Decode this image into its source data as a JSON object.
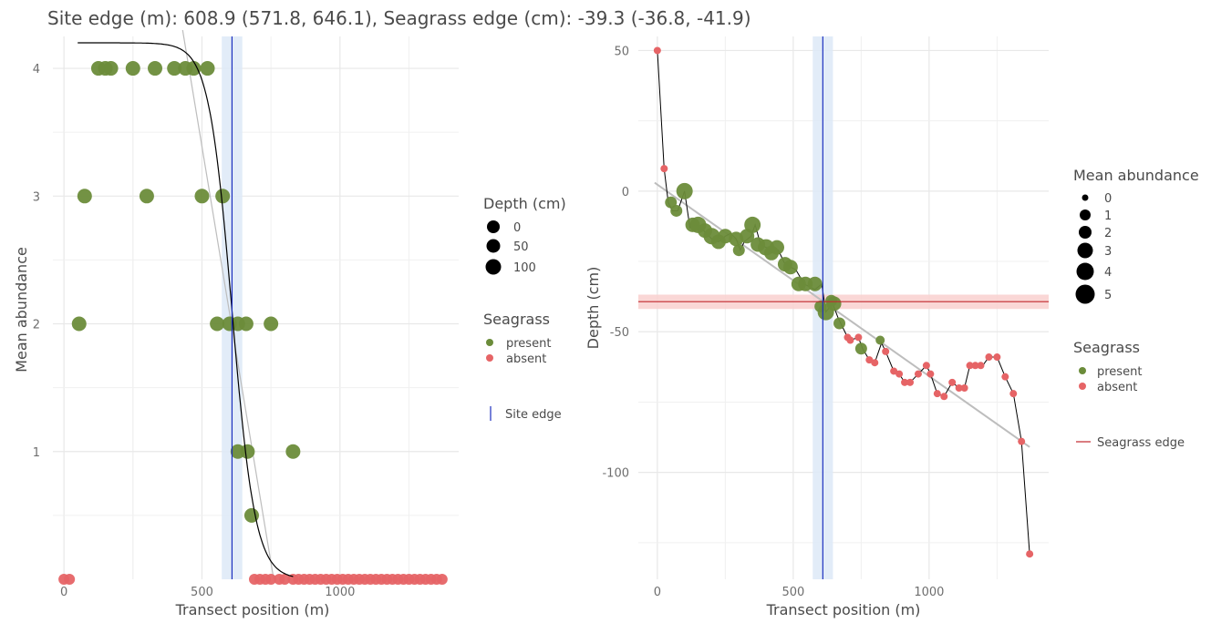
{
  "title": "Site edge (m): 608.9 (571.8, 646.1), Seagrass edge (cm): -39.3 (-36.8, -41.9)",
  "colors": {
    "present": "#6b8c3a",
    "absent": "#e66466",
    "site_edge": "#1c2fbf",
    "site_edge_ci": "#dde9f7",
    "seagrass_edge": "#c1272d",
    "seagrass_edge_ci": "#f9d0cf",
    "grid": "#e8e8e8",
    "trend": "#bdbdbd",
    "fit": "#000000"
  },
  "chart_data": [
    {
      "type": "scatter",
      "xlabel": "Transect position (m)",
      "ylabel": "Mean abundance",
      "xlim": [
        -40,
        1430
      ],
      "ylim": [
        0,
        4.25
      ],
      "xticks": [
        0,
        500,
        1000
      ],
      "xtick_labels": [
        "0",
        "500",
        "1000"
      ],
      "yticks": [
        1,
        2,
        3,
        4
      ],
      "ytick_labels": [
        "1",
        "2",
        "3",
        "4"
      ],
      "grid": true,
      "site_edge": 608.9,
      "site_edge_ci": [
        571.8,
        646.1
      ],
      "logistic_fit": {
        "x_range": [
          50,
          830
        ],
        "upper": 4.2,
        "midpoint": 608.9,
        "scale": 42
      },
      "tangent_line": [
        [
          430,
          4.3
        ],
        [
          760,
          0
        ]
      ],
      "size_legend": {
        "title": "Depth (cm)",
        "labels": [
          "0",
          "50",
          "100"
        ]
      },
      "color_legend": {
        "title": "Seagrass",
        "labels": [
          "present",
          "absent"
        ]
      },
      "line_legend": {
        "label": "Site edge"
      },
      "series": [
        {
          "name": "present",
          "points": [
            {
              "x": 125,
              "y": 4
            },
            {
              "x": 150,
              "y": 4
            },
            {
              "x": 170,
              "y": 4
            },
            {
              "x": 250,
              "y": 4
            },
            {
              "x": 330,
              "y": 4
            },
            {
              "x": 400,
              "y": 4
            },
            {
              "x": 440,
              "y": 4
            },
            {
              "x": 470,
              "y": 4
            },
            {
              "x": 520,
              "y": 4
            },
            {
              "x": 75,
              "y": 3
            },
            {
              "x": 300,
              "y": 3
            },
            {
              "x": 500,
              "y": 3
            },
            {
              "x": 575,
              "y": 3
            },
            {
              "x": 55,
              "y": 2
            },
            {
              "x": 555,
              "y": 2
            },
            {
              "x": 600,
              "y": 2
            },
            {
              "x": 630,
              "y": 2
            },
            {
              "x": 660,
              "y": 2
            },
            {
              "x": 750,
              "y": 2
            },
            {
              "x": 630,
              "y": 1
            },
            {
              "x": 665,
              "y": 1
            },
            {
              "x": 830,
              "y": 1
            },
            {
              "x": 680,
              "y": 0.5
            }
          ]
        },
        {
          "name": "absent",
          "points": [
            {
              "x": 0,
              "y": 0
            },
            {
              "x": 20,
              "y": 0
            },
            {
              "x": 690,
              "y": 0
            },
            {
              "x": 710,
              "y": 0
            },
            {
              "x": 730,
              "y": 0
            },
            {
              "x": 750,
              "y": 0
            },
            {
              "x": 780,
              "y": 0
            },
            {
              "x": 800,
              "y": 0
            },
            {
              "x": 830,
              "y": 0
            },
            {
              "x": 850,
              "y": 0
            },
            {
              "x": 870,
              "y": 0
            },
            {
              "x": 890,
              "y": 0
            },
            {
              "x": 910,
              "y": 0
            },
            {
              "x": 930,
              "y": 0
            },
            {
              "x": 950,
              "y": 0
            },
            {
              "x": 970,
              "y": 0
            },
            {
              "x": 990,
              "y": 0
            },
            {
              "x": 1010,
              "y": 0
            },
            {
              "x": 1030,
              "y": 0
            },
            {
              "x": 1050,
              "y": 0
            },
            {
              "x": 1070,
              "y": 0
            },
            {
              "x": 1090,
              "y": 0
            },
            {
              "x": 1110,
              "y": 0
            },
            {
              "x": 1130,
              "y": 0
            },
            {
              "x": 1150,
              "y": 0
            },
            {
              "x": 1170,
              "y": 0
            },
            {
              "x": 1190,
              "y": 0
            },
            {
              "x": 1210,
              "y": 0
            },
            {
              "x": 1230,
              "y": 0
            },
            {
              "x": 1250,
              "y": 0
            },
            {
              "x": 1270,
              "y": 0
            },
            {
              "x": 1290,
              "y": 0
            },
            {
              "x": 1310,
              "y": 0
            },
            {
              "x": 1330,
              "y": 0
            },
            {
              "x": 1350,
              "y": 0
            },
            {
              "x": 1370,
              "y": 0
            }
          ]
        }
      ]
    },
    {
      "type": "scatter",
      "xlabel": "Transect position (m)",
      "ylabel": "Depth (cm)",
      "xlim": [
        -70,
        1440
      ],
      "ylim": [
        -138,
        55
      ],
      "xticks": [
        0,
        500,
        1000
      ],
      "xtick_labels": [
        "0",
        "500",
        "1000"
      ],
      "yticks": [
        50,
        0,
        -50,
        -100
      ],
      "ytick_labels": [
        "50",
        "0",
        "-50",
        "-100"
      ],
      "grid": true,
      "site_edge": 608.9,
      "site_edge_ci": [
        571.8,
        646.1
      ],
      "seagrass_edge": -39.3,
      "seagrass_edge_ci": [
        -36.8,
        -41.9
      ],
      "trend_line": [
        [
          -10,
          3
        ],
        [
          1370,
          -91
        ]
      ],
      "size_legend": {
        "title": "Mean abundance",
        "labels": [
          "0",
          "1",
          "2",
          "3",
          "4",
          "5"
        ]
      },
      "color_legend": {
        "title": "Seagrass",
        "labels": [
          "present",
          "absent"
        ]
      },
      "line_legend": {
        "label": "Seagrass edge"
      },
      "profile": [
        [
          0,
          50
        ],
        [
          25,
          8
        ],
        [
          40,
          -4
        ],
        [
          55,
          -7
        ],
        [
          75,
          -7
        ],
        [
          100,
          0
        ],
        [
          120,
          -13
        ],
        [
          140,
          -12
        ],
        [
          160,
          -13
        ],
        [
          180,
          -15
        ],
        [
          200,
          -17
        ],
        [
          225,
          -18
        ],
        [
          250,
          -16
        ],
        [
          270,
          -15
        ],
        [
          290,
          -17
        ],
        [
          305,
          -21
        ],
        [
          320,
          -18
        ],
        [
          345,
          -16
        ],
        [
          360,
          -12
        ],
        [
          380,
          -19
        ],
        [
          400,
          -20
        ],
        [
          420,
          -22
        ],
        [
          445,
          -21
        ],
        [
          470,
          -26
        ],
        [
          490,
          -27
        ],
        [
          510,
          -28
        ],
        [
          540,
          -33
        ],
        [
          580,
          -35
        ],
        [
          605,
          -33
        ],
        [
          620,
          -43
        ],
        [
          645,
          -40
        ],
        [
          665,
          -45
        ],
        [
          680,
          -48
        ],
        [
          700,
          -52
        ],
        [
          710,
          -53
        ],
        [
          740,
          -52
        ],
        [
          755,
          -56
        ],
        [
          780,
          -60
        ],
        [
          800,
          -61
        ],
        [
          825,
          -54
        ],
        [
          840,
          -57
        ],
        [
          870,
          -64
        ],
        [
          890,
          -65
        ],
        [
          910,
          -68
        ],
        [
          930,
          -68
        ],
        [
          960,
          -65
        ],
        [
          990,
          -62
        ],
        [
          1005,
          -65
        ],
        [
          1030,
          -72
        ],
        [
          1055,
          -73
        ],
        [
          1085,
          -68
        ],
        [
          1110,
          -70
        ],
        [
          1130,
          -70
        ],
        [
          1150,
          -62
        ],
        [
          1170,
          -62
        ],
        [
          1190,
          -63
        ],
        [
          1220,
          -59
        ],
        [
          1250,
          -59
        ],
        [
          1280,
          -66
        ],
        [
          1310,
          -72
        ],
        [
          1340,
          -89
        ],
        [
          1370,
          -129
        ]
      ],
      "series": [
        {
          "name": "present",
          "points": [
            {
              "x": 50,
              "y": -4,
              "a": 2
            },
            {
              "x": 70,
              "y": -7,
              "a": 2
            },
            {
              "x": 100,
              "y": 0,
              "a": 4
            },
            {
              "x": 130,
              "y": -12,
              "a": 3
            },
            {
              "x": 150,
              "y": -12,
              "a": 4
            },
            {
              "x": 175,
              "y": -14,
              "a": 3
            },
            {
              "x": 200,
              "y": -16,
              "a": 4
            },
            {
              "x": 225,
              "y": -18,
              "a": 3
            },
            {
              "x": 250,
              "y": -16,
              "a": 3
            },
            {
              "x": 290,
              "y": -17,
              "a": 3
            },
            {
              "x": 300,
              "y": -21,
              "a": 2
            },
            {
              "x": 330,
              "y": -16,
              "a": 3
            },
            {
              "x": 350,
              "y": -12,
              "a": 4
            },
            {
              "x": 370,
              "y": -19,
              "a": 3
            },
            {
              "x": 400,
              "y": -20,
              "a": 4
            },
            {
              "x": 420,
              "y": -22,
              "a": 3
            },
            {
              "x": 440,
              "y": -20,
              "a": 3
            },
            {
              "x": 470,
              "y": -26,
              "a": 3
            },
            {
              "x": 490,
              "y": -27,
              "a": 3
            },
            {
              "x": 520,
              "y": -33,
              "a": 3
            },
            {
              "x": 545,
              "y": -33,
              "a": 3
            },
            {
              "x": 580,
              "y": -33,
              "a": 3
            },
            {
              "x": 600,
              "y": -41,
              "a": 2
            },
            {
              "x": 620,
              "y": -43,
              "a": 4
            },
            {
              "x": 640,
              "y": -39,
              "a": 2
            },
            {
              "x": 650,
              "y": -40,
              "a": 3
            },
            {
              "x": 670,
              "y": -47,
              "a": 2
            },
            {
              "x": 750,
              "y": -56,
              "a": 2
            },
            {
              "x": 820,
              "y": -53,
              "a": 1
            }
          ]
        },
        {
          "name": "absent",
          "points": [
            {
              "x": 0,
              "y": 50
            },
            {
              "x": 25,
              "y": 8
            },
            {
              "x": 700,
              "y": -52
            },
            {
              "x": 710,
              "y": -53
            },
            {
              "x": 740,
              "y": -52
            },
            {
              "x": 780,
              "y": -60
            },
            {
              "x": 800,
              "y": -61
            },
            {
              "x": 840,
              "y": -57
            },
            {
              "x": 870,
              "y": -64
            },
            {
              "x": 890,
              "y": -65
            },
            {
              "x": 910,
              "y": -68
            },
            {
              "x": 930,
              "y": -68
            },
            {
              "x": 960,
              "y": -65
            },
            {
              "x": 990,
              "y": -62
            },
            {
              "x": 1005,
              "y": -65
            },
            {
              "x": 1030,
              "y": -72
            },
            {
              "x": 1055,
              "y": -73
            },
            {
              "x": 1085,
              "y": -68
            },
            {
              "x": 1110,
              "y": -70
            },
            {
              "x": 1130,
              "y": -70
            },
            {
              "x": 1150,
              "y": -62
            },
            {
              "x": 1170,
              "y": -62
            },
            {
              "x": 1190,
              "y": -62
            },
            {
              "x": 1220,
              "y": -59
            },
            {
              "x": 1250,
              "y": -59
            },
            {
              "x": 1280,
              "y": -66
            },
            {
              "x": 1310,
              "y": -72
            },
            {
              "x": 1340,
              "y": -89
            },
            {
              "x": 1370,
              "y": -129
            }
          ]
        }
      ]
    }
  ]
}
